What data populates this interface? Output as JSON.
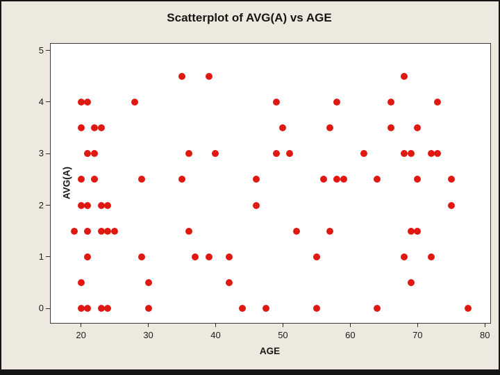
{
  "title": "Scatterplot of AVG(A) vs AGE",
  "colors": {
    "background": "#EDE9DE",
    "plot_background": "#FFFFFF",
    "marker": "#E01812",
    "text": "#161616",
    "frame_border": "#151515"
  },
  "chart_data": {
    "type": "scatter",
    "title": "Scatterplot of AVG(A) vs AGE",
    "xlabel": "AGE",
    "ylabel": "AVG(A)",
    "xlim": [
      15.5,
      80.8
    ],
    "ylim": [
      -0.28,
      5.13
    ],
    "x_ticks": [
      20,
      30,
      40,
      50,
      60,
      70,
      80
    ],
    "y_ticks": [
      0,
      1,
      2,
      3,
      4,
      5
    ],
    "grid": false,
    "legend": "none",
    "marker_color": "#E01812",
    "points": [
      [
        35,
        4.5
      ],
      [
        39,
        4.5
      ],
      [
        68,
        4.5
      ],
      [
        20,
        4
      ],
      [
        21,
        4
      ],
      [
        28,
        4
      ],
      [
        49,
        4
      ],
      [
        58,
        4
      ],
      [
        66,
        4
      ],
      [
        73,
        4
      ],
      [
        20,
        3.5
      ],
      [
        22,
        3.5
      ],
      [
        23,
        3.5
      ],
      [
        50,
        3.5
      ],
      [
        57,
        3.5
      ],
      [
        66,
        3.5
      ],
      [
        70,
        3.5
      ],
      [
        21,
        3
      ],
      [
        22,
        3
      ],
      [
        36,
        3
      ],
      [
        40,
        3
      ],
      [
        49,
        3
      ],
      [
        51,
        3
      ],
      [
        62,
        3
      ],
      [
        68,
        3
      ],
      [
        69,
        3
      ],
      [
        72,
        3
      ],
      [
        73,
        3
      ],
      [
        20,
        2.5
      ],
      [
        22,
        2.5
      ],
      [
        29,
        2.5
      ],
      [
        35,
        2.5
      ],
      [
        46,
        2.5
      ],
      [
        56,
        2.5
      ],
      [
        58,
        2.5
      ],
      [
        59,
        2.5
      ],
      [
        64,
        2.5
      ],
      [
        70,
        2.5
      ],
      [
        75,
        2.5
      ],
      [
        20,
        2
      ],
      [
        21,
        2
      ],
      [
        23,
        2
      ],
      [
        24,
        2
      ],
      [
        46,
        2
      ],
      [
        75,
        2
      ],
      [
        19,
        1.5
      ],
      [
        21,
        1.5
      ],
      [
        23,
        1.5
      ],
      [
        24,
        1.5
      ],
      [
        25,
        1.5
      ],
      [
        36,
        1.5
      ],
      [
        52,
        1.5
      ],
      [
        57,
        1.5
      ],
      [
        69,
        1.5
      ],
      [
        70,
        1.5
      ],
      [
        21,
        1
      ],
      [
        29,
        1
      ],
      [
        37,
        1
      ],
      [
        39,
        1
      ],
      [
        42,
        1
      ],
      [
        55,
        1
      ],
      [
        68,
        1
      ],
      [
        72,
        1
      ],
      [
        20,
        0.5
      ],
      [
        30,
        0.5
      ],
      [
        42,
        0.5
      ],
      [
        69,
        0.5
      ],
      [
        20,
        0
      ],
      [
        21,
        0
      ],
      [
        23,
        0
      ],
      [
        24,
        0
      ],
      [
        30,
        0
      ],
      [
        44,
        0
      ],
      [
        47.5,
        0
      ],
      [
        55,
        0
      ],
      [
        64,
        0
      ],
      [
        77.5,
        0
      ]
    ]
  }
}
